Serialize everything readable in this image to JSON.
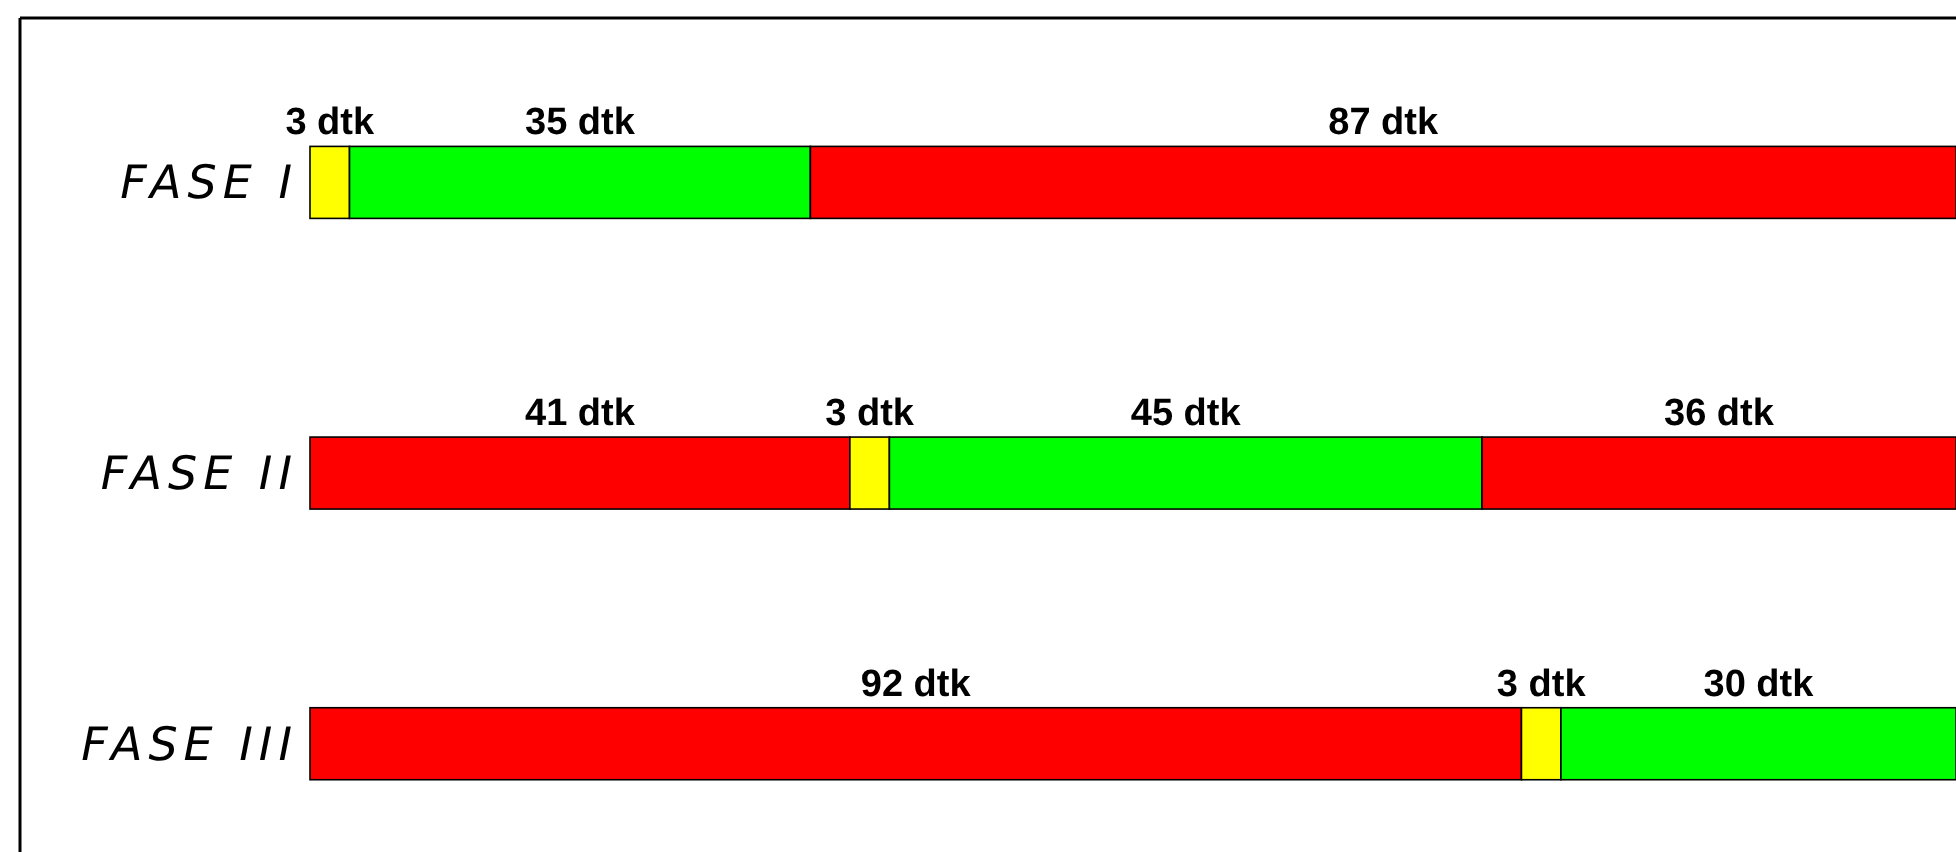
{
  "chart_data": {
    "type": "bar",
    "orientation": "horizontal",
    "stacked": true,
    "categories": [
      "FASE I",
      "FASE II",
      "FASE III"
    ],
    "series": [
      {
        "colors": [
          "#ffff00",
          "#ff0000",
          "#ff0000"
        ],
        "values": [
          3,
          41,
          92
        ],
        "value_labels": [
          "3 dtk",
          "41 dtk",
          "92 dtk"
        ]
      },
      {
        "colors": [
          "#00ff00",
          "#ffff00",
          "#ffff00"
        ],
        "values": [
          35,
          3,
          3
        ],
        "value_labels": [
          "35 dtk",
          "3 dtk",
          "3 dtk"
        ]
      },
      {
        "colors": [
          "#ff0000",
          "#00ff00",
          "#00ff00"
        ],
        "values": [
          87,
          45,
          30
        ],
        "value_labels": [
          "87 dtk",
          "45 dtk",
          "30 dtk"
        ]
      },
      {
        "color": "#ff0000",
        "values": [
          null,
          36,
          null
        ],
        "value_labels": [
          null,
          "36 dtk",
          null
        ]
      }
    ]
  }
}
